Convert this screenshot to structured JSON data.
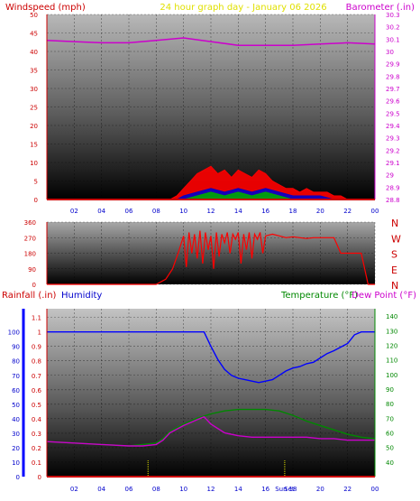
{
  "header": {
    "windspeed_label": "Windspeed (mph)",
    "title": "24 hour graph day - January 06 2026",
    "barometer_label": "Barometer (.in)"
  },
  "colors": {
    "wind_red": "#ff0000",
    "wind_blue": "#0000cc",
    "wind_green": "#00aa00",
    "baro_magenta": "#cc00cc",
    "title_yellow": "#e0e000",
    "humidity_blue": "#0000ff",
    "temperature_green": "#008800",
    "dew_magenta": "#cc00cc",
    "rain_red": "#cc0000"
  },
  "chart_data": [
    {
      "type": "line",
      "id": "wind-baro",
      "xlabel": "",
      "x_ticks": [
        "02",
        "04",
        "06",
        "08",
        "10",
        "12",
        "14",
        "16",
        "18",
        "20",
        "22",
        "00"
      ],
      "y_left_label": "Windspeed (mph)",
      "y_left_range": [
        0,
        50
      ],
      "y_left_ticks": [
        0,
        5,
        10,
        15,
        20,
        25,
        30,
        35,
        40,
        45,
        50
      ],
      "y_right_label": "Barometer (.in)",
      "y_right_range": [
        28.8,
        30.3
      ],
      "y_right_ticks": [
        "28.8",
        "28.9",
        "29",
        "29.1",
        "29.2",
        "29.3",
        "29.4",
        "29.5",
        "29.6",
        "29.7",
        "29.8",
        "29.9",
        "30",
        "30.1",
        "30.2",
        "30.3"
      ],
      "series": [
        {
          "name": "Barometer",
          "axis": "right",
          "x": [
            0,
            2,
            4,
            6,
            8,
            10,
            12,
            14,
            16,
            18,
            20,
            22,
            24
          ],
          "values": [
            30.09,
            30.08,
            30.07,
            30.07,
            30.09,
            30.11,
            30.08,
            30.05,
            30.05,
            30.05,
            30.06,
            30.07,
            30.06
          ]
        },
        {
          "name": "Wind Gust",
          "axis": "left",
          "x": [
            0,
            9,
            9.5,
            10,
            10.5,
            11,
            11.5,
            12,
            12.5,
            13,
            13.5,
            14,
            14.5,
            15,
            15.5,
            16,
            16.5,
            17,
            17.5,
            18,
            18.5,
            19,
            19.5,
            20,
            20.5,
            21,
            21.5,
            22,
            24
          ],
          "values": [
            0,
            0,
            1,
            3,
            5,
            7,
            8,
            9,
            7,
            8,
            6,
            8,
            7,
            6,
            8,
            7,
            5,
            4,
            3,
            3,
            2,
            3,
            2,
            2,
            2,
            1,
            1,
            0,
            0
          ]
        },
        {
          "name": "Wind Average",
          "axis": "left",
          "x": [
            0,
            9.5,
            10,
            11,
            12,
            13,
            14,
            15,
            16,
            17,
            18,
            19,
            20,
            21,
            24
          ],
          "values": [
            0,
            0,
            1,
            2,
            3,
            2,
            3,
            2,
            3,
            2,
            1,
            1,
            1,
            0,
            0
          ]
        },
        {
          "name": "Wind Low",
          "axis": "left",
          "x": [
            0,
            10,
            11,
            12,
            13,
            14,
            15,
            16,
            17,
            18,
            24
          ],
          "values": [
            0,
            0,
            1,
            2,
            1,
            2,
            1,
            2,
            1,
            0,
            0
          ]
        }
      ]
    },
    {
      "type": "scatter",
      "id": "wind-direction",
      "x_ticks": [],
      "y_left_range": [
        0,
        360
      ],
      "y_left_ticks": [
        0,
        90,
        180,
        270,
        360
      ],
      "y_right_ticks": [
        "N",
        "E",
        "S",
        "W",
        "N"
      ],
      "series": [
        {
          "name": "Wind Direction",
          "x": [
            0,
            8,
            8.7,
            9.2,
            9.6,
            10,
            10.2,
            10.4,
            10.6,
            10.8,
            11,
            11.2,
            11.4,
            11.6,
            11.8,
            12,
            12.2,
            12.4,
            12.6,
            12.8,
            13,
            13.2,
            13.4,
            13.6,
            13.8,
            14,
            14.2,
            14.4,
            14.6,
            14.8,
            15,
            15.2,
            15.4,
            15.6,
            15.8,
            16,
            16.5,
            17,
            17.5,
            18,
            18.5,
            19,
            19.5,
            20,
            21,
            21.5,
            22,
            23,
            23.5,
            24
          ],
          "values": [
            0,
            0,
            30,
            90,
            180,
            280,
            100,
            300,
            180,
            290,
            150,
            310,
            120,
            300,
            200,
            280,
            90,
            300,
            160,
            290,
            240,
            300,
            180,
            290,
            260,
            300,
            120,
            290,
            200,
            300,
            150,
            290,
            260,
            300,
            180,
            280,
            290,
            280,
            270,
            275,
            270,
            265,
            270,
            270,
            270,
            180,
            180,
            180,
            0,
            0
          ]
        }
      ]
    },
    {
      "type": "line",
      "id": "rain-hum-temp",
      "header": {
        "rainfall_label": "Rainfall (.in)",
        "humidity_label": "Humidity",
        "temperature_label": "Temperature (°F)",
        "dewpoint_label": "Dew Point (°F)"
      },
      "x_ticks": [
        "02",
        "04",
        "06",
        "08",
        "10",
        "12",
        "14",
        "16",
        "18",
        "20",
        "22",
        "00"
      ],
      "x_markers": [
        "Sun",
        "Set"
      ],
      "y_left_rain_ticks": [
        "0",
        "0.1",
        "0.2",
        "0.3",
        "0.4",
        "0.5",
        "0.6",
        "0.7",
        "0.8",
        "0.9",
        "1",
        "1.1"
      ],
      "y_left_hum_ticks": [
        "0",
        "10",
        "20",
        "30",
        "40",
        "50",
        "60",
        "70",
        "80",
        "90",
        "100"
      ],
      "y_left_range": [
        0,
        1.16
      ],
      "y_right_range": [
        30,
        145
      ],
      "y_right_ticks": [
        "40",
        "50",
        "60",
        "70",
        "80",
        "90",
        "100",
        "110",
        "120",
        "130",
        "140"
      ],
      "series": [
        {
          "name": "Humidity",
          "axis": "humidity",
          "x": [
            0,
            4,
            8,
            10,
            11,
            11.5,
            12,
            12.5,
            13,
            13.5,
            14,
            14.5,
            15,
            15.5,
            16,
            16.5,
            17,
            17.5,
            18,
            18.5,
            19,
            19.5,
            20,
            20.5,
            21,
            22,
            22.5,
            23,
            24
          ],
          "values": [
            100,
            100,
            100,
            100,
            100,
            100,
            90,
            81,
            74,
            70,
            68,
            67,
            66,
            65,
            66,
            67,
            70,
            73,
            75,
            76,
            78,
            79,
            82,
            85,
            87,
            92,
            98,
            100,
            100
          ]
        },
        {
          "name": "Temperature",
          "axis": "right",
          "x": [
            0,
            2,
            4,
            6,
            7,
            8,
            8.5,
            9,
            10,
            11,
            12,
            13,
            14,
            15,
            16,
            17,
            18,
            19,
            20,
            21,
            22,
            23,
            24
          ],
          "values": [
            54,
            53,
            52,
            51,
            52,
            53,
            56,
            61,
            66,
            70,
            73,
            75,
            76,
            76,
            76,
            75,
            72,
            68,
            65,
            62,
            59,
            57,
            56
          ]
        },
        {
          "name": "Dew Point",
          "axis": "right",
          "x": [
            0,
            2,
            4,
            6,
            7,
            8,
            8.5,
            9,
            10,
            11,
            11.5,
            12,
            13,
            14,
            15,
            16,
            17,
            18,
            19,
            20,
            21,
            22,
            23,
            24
          ],
          "values": [
            54,
            53,
            52,
            51,
            51,
            52,
            55,
            60,
            65,
            69,
            71,
            66,
            60,
            58,
            57,
            57,
            57,
            57,
            57,
            56,
            56,
            55,
            55,
            55
          ]
        },
        {
          "name": "Rainfall",
          "axis": "rain",
          "x": [
            0,
            24
          ],
          "values": [
            0,
            0
          ]
        }
      ],
      "vertical_markers_hours": [
        7.4,
        17.4
      ]
    }
  ]
}
